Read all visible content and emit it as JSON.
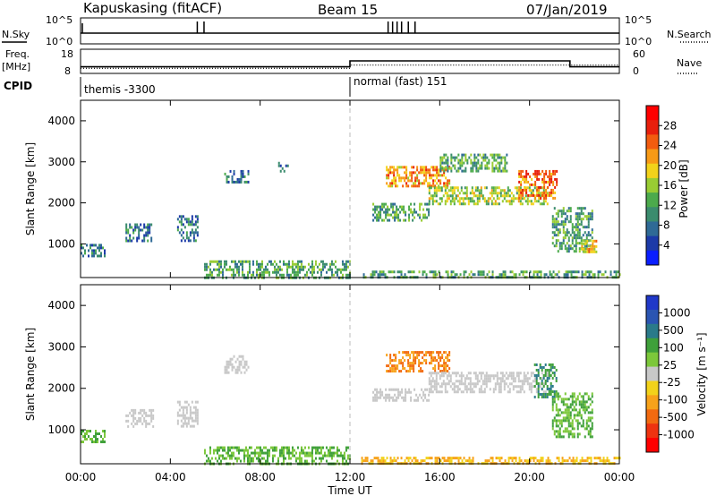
{
  "header": {
    "station": "Kapuskasing (fitACF)",
    "beam": "Beam 15",
    "date": "07/Jan/2019"
  },
  "summary_panel": {
    "nsky_label": "N.Sky",
    "nsky_ticks": [
      "10^5",
      "10^0"
    ],
    "nsearch_label": "N.Search",
    "nsearch_ticks": [
      "10^5",
      "10^0"
    ],
    "freq_label_1": "Freq.",
    "freq_label_2": "[MHz]",
    "freq_ticks": [
      "18",
      "8"
    ],
    "nave_label": "Nave",
    "nave_ticks": [
      "60",
      "0"
    ],
    "cpid_label": "CPID"
  },
  "cpid_segments": [
    {
      "start_hr": 0,
      "end_hr": 12,
      "label": "themis -3300"
    },
    {
      "start_hr": 12,
      "end_hr": 24,
      "label": "normal (fast) 151"
    }
  ],
  "power_panel": {
    "ylabel": "Slant Range [km]",
    "y_ticks": [
      "4000",
      "3000",
      "2000",
      "1000"
    ],
    "colorbar_label": "Power [dB]",
    "colorbar_ticks": [
      "28",
      "24",
      "20",
      "16",
      "12",
      "8",
      "4"
    ],
    "colorbar_colors": [
      "#0a1eff",
      "#1c3aa8",
      "#2f6a96",
      "#3b8c6e",
      "#4caa4c",
      "#99cc33",
      "#f2d21a",
      "#f79a16",
      "#f25c0f",
      "#e81f0c",
      "#ff0000"
    ]
  },
  "velocity_panel": {
    "ylabel": "Slant Range [km]",
    "y_ticks": [
      "4000",
      "3000",
      "2000",
      "1000"
    ],
    "colorbar_label": "Velocity [m s⁻¹]",
    "colorbar_ticks": [
      "1000",
      "500",
      "100",
      "25",
      "-25",
      "-100",
      "-500",
      "-1000"
    ],
    "colorbar_colors": [
      "#2038c8",
      "#2a55b2",
      "#2a7a8a",
      "#3fa03a",
      "#7cc83a",
      "#c8c8c8",
      "#f2d21a",
      "#f7a21a",
      "#f26a10",
      "#ee3310",
      "#ff0000"
    ]
  },
  "x_axis": {
    "label": "Time UT",
    "ticks": [
      "00:00",
      "04:00",
      "08:00",
      "12:00",
      "16:00",
      "20:00",
      "00:00"
    ]
  },
  "chart_data": {
    "type": "heatmap",
    "title": "Kapuskasing (fitACF)",
    "subtitle": "Beam 15",
    "xlabel": "Time UT",
    "ylabel": "Slant Range [km]",
    "xlim": [
      0,
      24
    ],
    "ylim": [
      180,
      4500
    ],
    "frequency_mhz": [
      {
        "start_hr": 0,
        "end_hr": 12,
        "value": 10
      },
      {
        "start_hr": 12,
        "end_hr": 21.8,
        "value": 13
      },
      {
        "start_hr": 21.8,
        "end_hr": 24,
        "value": 10
      }
    ],
    "nave": [
      {
        "start_hr": 0,
        "end_hr": 12,
        "value": 10
      },
      {
        "start_hr": 12,
        "end_hr": 24,
        "value": 20
      }
    ],
    "nsky_spikes_hr": [
      5.2,
      5.5,
      13.7,
      13.9,
      14.1,
      14.3,
      14.6,
      14.9
    ],
    "power_regions": [
      {
        "t0": 0.0,
        "t1": 1.1,
        "r0": 700,
        "r1": 1000,
        "level": 8
      },
      {
        "t0": 2.0,
        "t1": 3.2,
        "r0": 1100,
        "r1": 1500,
        "level": 8
      },
      {
        "t0": 4.3,
        "t1": 5.2,
        "r0": 1100,
        "r1": 1700,
        "level": 8
      },
      {
        "t0": 6.4,
        "t1": 7.5,
        "r0": 2500,
        "r1": 2800,
        "level": 8
      },
      {
        "t0": 8.8,
        "t1": 9.2,
        "r0": 2800,
        "r1": 3000,
        "level": 8
      },
      {
        "t0": 5.5,
        "t1": 12.0,
        "r0": 180,
        "r1": 600,
        "level": 12
      },
      {
        "t0": 12.5,
        "t1": 24.0,
        "r0": 180,
        "r1": 350,
        "level": 12
      },
      {
        "t0": 13.0,
        "t1": 15.5,
        "r0": 1600,
        "r1": 2000,
        "level": 12
      },
      {
        "t0": 13.6,
        "t1": 16.4,
        "r0": 2400,
        "r1": 2900,
        "level": 22
      },
      {
        "t0": 15.5,
        "t1": 20.8,
        "r0": 2000,
        "r1": 2400,
        "level": 16
      },
      {
        "t0": 16.0,
        "t1": 19.0,
        "r0": 2800,
        "r1": 3200,
        "level": 12
      },
      {
        "t0": 19.5,
        "t1": 21.2,
        "r0": 2100,
        "r1": 2800,
        "level": 24
      },
      {
        "t0": 21.0,
        "t1": 22.8,
        "r0": 800,
        "r1": 1900,
        "level": 12
      },
      {
        "t0": 22.3,
        "t1": 23.0,
        "r0": 800,
        "r1": 1100,
        "level": 20
      }
    ],
    "velocity_regions": [
      {
        "t0": 0.0,
        "t1": 1.1,
        "r0": 700,
        "r1": 1000,
        "value": 100
      },
      {
        "t0": 2.0,
        "t1": 3.2,
        "r0": 1100,
        "r1": 1500,
        "value": 0
      },
      {
        "t0": 4.3,
        "t1": 5.2,
        "r0": 1100,
        "r1": 1700,
        "value": 0
      },
      {
        "t0": 6.4,
        "t1": 7.5,
        "r0": 2400,
        "r1": 2800,
        "value": 0
      },
      {
        "t0": 5.5,
        "t1": 12.0,
        "r0": 180,
        "r1": 600,
        "value": 100
      },
      {
        "t0": 12.5,
        "t1": 24.0,
        "r0": 180,
        "r1": 350,
        "value": -100
      },
      {
        "t0": 13.0,
        "t1": 15.5,
        "r0": 1700,
        "r1": 2000,
        "value": 0
      },
      {
        "t0": 13.6,
        "t1": 16.4,
        "r0": 2400,
        "r1": 2900,
        "value": -500
      },
      {
        "t0": 15.5,
        "t1": 20.8,
        "r0": 1900,
        "r1": 2400,
        "value": 0
      },
      {
        "t0": 20.2,
        "t1": 21.2,
        "r0": 1800,
        "r1": 2600,
        "value": 500
      },
      {
        "t0": 21.0,
        "t1": 22.8,
        "r0": 800,
        "r1": 1900,
        "value": 100
      }
    ]
  }
}
